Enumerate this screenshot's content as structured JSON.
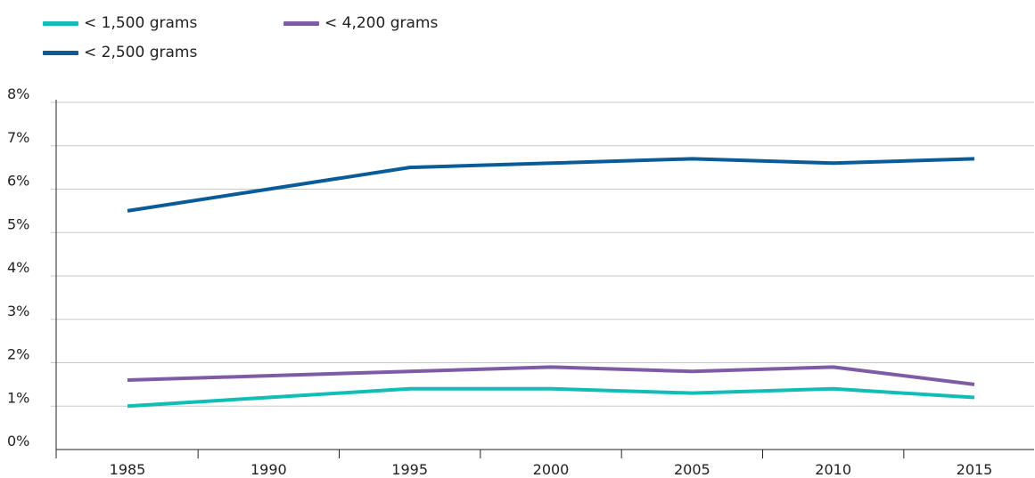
{
  "legend": {
    "items": [
      {
        "label": "< 1,500 grams",
        "color": "#12BDB6"
      },
      {
        "label": "< 4,200 grams",
        "color": "#7E5BA6"
      },
      {
        "label": "< 2,500 grams",
        "color": "#0A5C99"
      }
    ]
  },
  "chart_data": {
    "type": "line",
    "x": [
      1985,
      1990,
      1995,
      2000,
      2005,
      2010,
      2015
    ],
    "x_tick_labels": [
      "1985",
      "1990",
      "1995",
      "2000",
      "2005",
      "2010",
      "2015"
    ],
    "y_tick_labels": [
      "0%",
      "1%",
      "2%",
      "3%",
      "4%",
      "5%",
      "6%",
      "7%",
      "8%"
    ],
    "ylim": [
      0,
      8
    ],
    "grid": "horizontal",
    "legend_position": "top-left",
    "series": [
      {
        "name": "< 1,500 grams",
        "color": "#12BDB6",
        "values": [
          1.0,
          1.2,
          1.4,
          1.4,
          1.3,
          1.4,
          1.2
        ]
      },
      {
        "name": "< 4,200 grams",
        "color": "#7E5BA6",
        "values": [
          1.6,
          1.7,
          1.8,
          1.9,
          1.8,
          1.9,
          1.5
        ]
      },
      {
        "name": "< 2,500 grams",
        "color": "#0A5C99",
        "values": [
          5.5,
          6.0,
          6.5,
          6.6,
          6.7,
          6.6,
          6.7
        ]
      }
    ]
  }
}
